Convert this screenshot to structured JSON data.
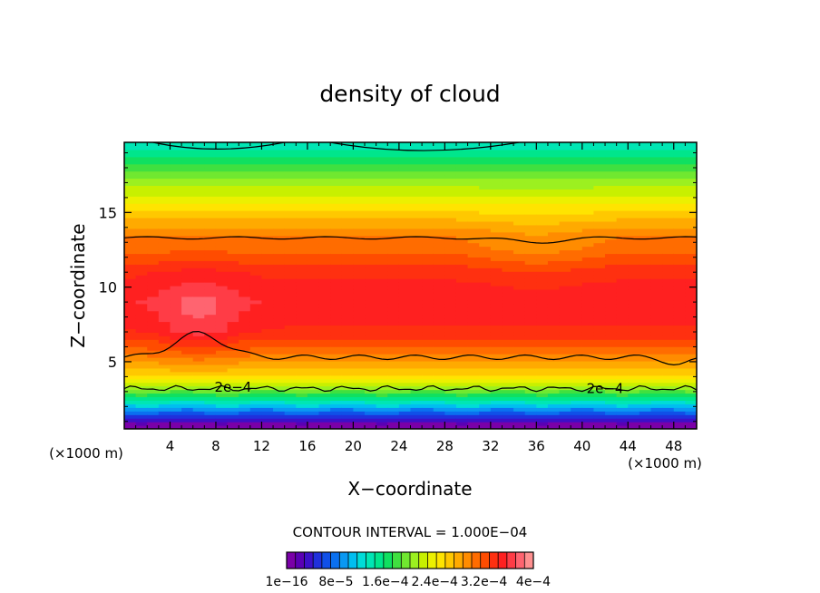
{
  "chart_data": {
    "type": "heatmap",
    "title": "density of cloud",
    "xlabel": "X−coordinate",
    "ylabel": "Z−coordinate",
    "x_unit_left": "(×1000 m)",
    "x_unit_right": "(×1000 m)",
    "xlim": [
      0,
      50
    ],
    "ylim": [
      0.5,
      19.7
    ],
    "x_ticks": [
      4,
      8,
      12,
      16,
      20,
      24,
      28,
      32,
      36,
      40,
      44,
      48
    ],
    "y_ticks": [
      5,
      10,
      15
    ],
    "contour_interval_text": "CONTOUR INTERVAL = 1.000E−04",
    "contour_labels": [
      {
        "text": "2e−4",
        "x": 9.5,
        "z": 3.3
      },
      {
        "text": "2e−4",
        "x": 42.0,
        "z": 3.2
      }
    ],
    "colorbar_labels": [
      "1e−16",
      "8e−5",
      "1.6e−4",
      "2.4e−4",
      "3.2e−4",
      "4e−4"
    ],
    "colorbar_colors": [
      "#7a00a8",
      "#5a00b4",
      "#3c10c8",
      "#2030dc",
      "#1050e8",
      "#0a70f0",
      "#0a98f2",
      "#00bef0",
      "#00dcd8",
      "#00e6b4",
      "#00e68c",
      "#10e060",
      "#40e040",
      "#70e830",
      "#9cf020",
      "#c8f000",
      "#ecf000",
      "#ffe400",
      "#ffc800",
      "#ffaa00",
      "#ff8c00",
      "#ff6c00",
      "#ff4c00",
      "#ff3010",
      "#ff2020",
      "#ff3c46",
      "#ff6470",
      "#ff9090"
    ],
    "vertical_profile": [
      {
        "z": 0.7,
        "value": 1e-16
      },
      {
        "z": 1.2,
        "value": 4e-05
      },
      {
        "z": 1.7,
        "value": 8e-05
      },
      {
        "z": 2.3,
        "value": 0.00013
      },
      {
        "z": 3.2,
        "value": 0.0002
      },
      {
        "z": 4.2,
        "value": 0.00026
      },
      {
        "z": 5.5,
        "value": 0.0003
      },
      {
        "z": 7.0,
        "value": 0.00034
      },
      {
        "z": 9.0,
        "value": 0.000355
      },
      {
        "z": 11.0,
        "value": 0.00034
      },
      {
        "z": 12.5,
        "value": 0.00031
      },
      {
        "z": 13.5,
        "value": 0.0003
      },
      {
        "z": 15.0,
        "value": 0.00026
      },
      {
        "z": 16.5,
        "value": 0.00022
      },
      {
        "z": 18.0,
        "value": 0.00018
      },
      {
        "z": 19.7,
        "value": 0.00013
      }
    ]
  }
}
